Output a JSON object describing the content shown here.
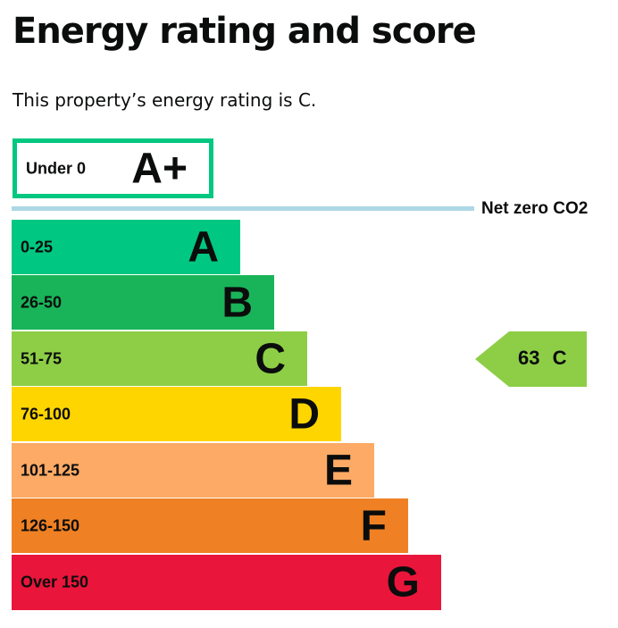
{
  "header": {
    "title": "Energy rating and score",
    "subtitle": "This property’s energy rating is C."
  },
  "chart_data": {
    "type": "bar",
    "title": "Energy rating and score",
    "bands": [
      {
        "range": "Under 0",
        "letter": "A+",
        "color": "#00c781",
        "outline": true
      },
      {
        "range": "0-25",
        "letter": "A",
        "color": "#00c781"
      },
      {
        "range": "26-50",
        "letter": "B",
        "color": "#19b459"
      },
      {
        "range": "51-75",
        "letter": "C",
        "color": "#8dce46"
      },
      {
        "range": "76-100",
        "letter": "D",
        "color": "#ffd500"
      },
      {
        "range": "101-125",
        "letter": "E",
        "color": "#fcaa65"
      },
      {
        "range": "126-150",
        "letter": "F",
        "color": "#ef8023"
      },
      {
        "range": "Over 150",
        "letter": "G",
        "color": "#e9153b"
      }
    ],
    "net_zero_label": "Net zero CO2",
    "current": {
      "score": 63,
      "rating": "C",
      "label": "63 C",
      "band_index": 3,
      "color": "#8dce46"
    }
  }
}
